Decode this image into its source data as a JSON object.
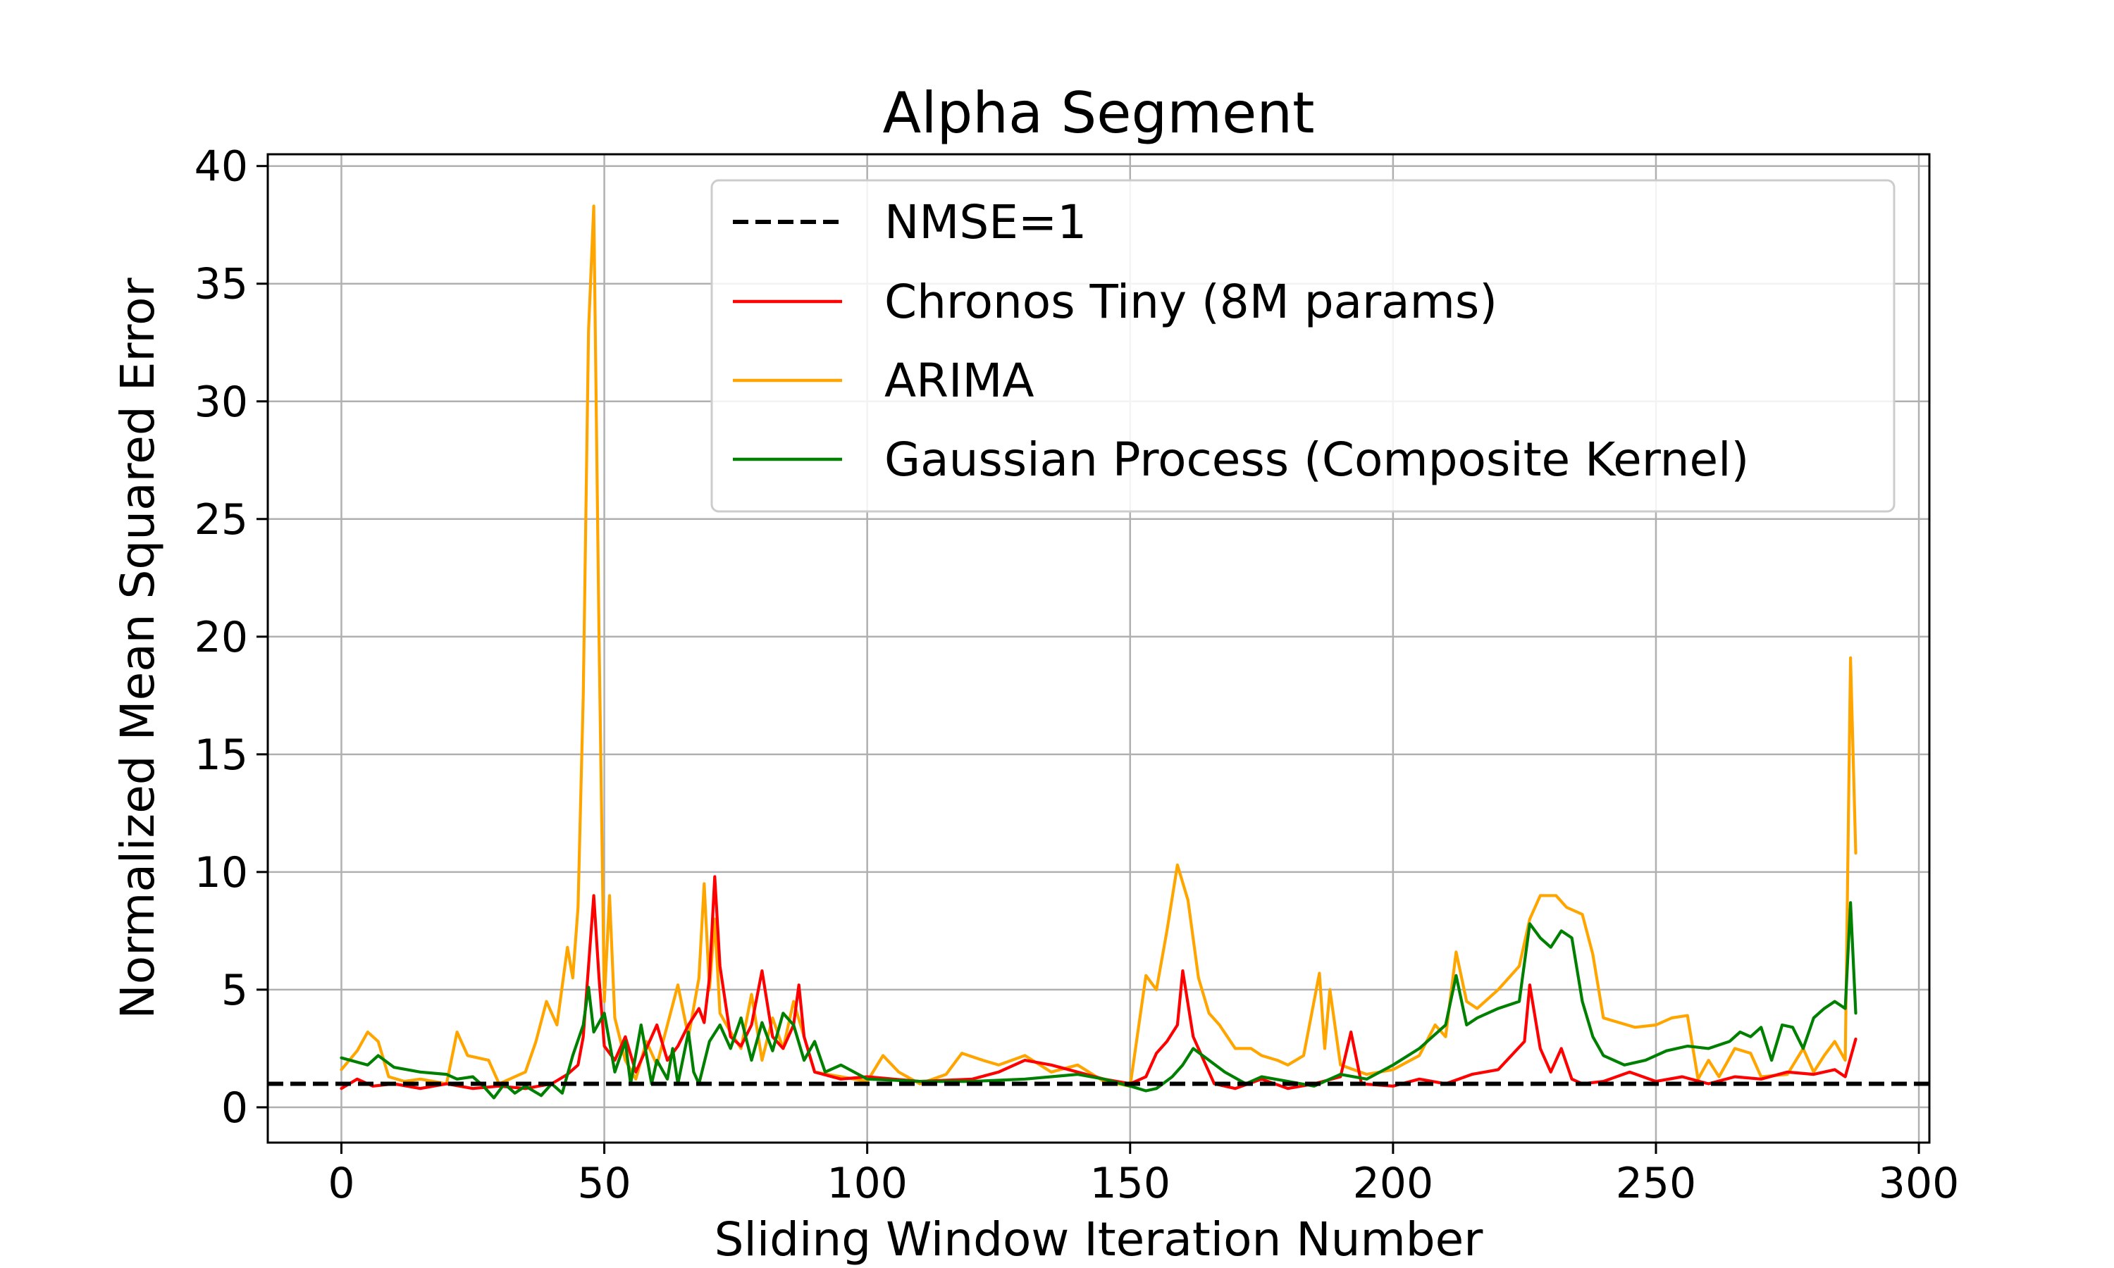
{
  "chart_data": {
    "type": "line",
    "title": "Alpha Segment",
    "xlabel": "Sliding Window Iteration Number",
    "ylabel": "Normalized Mean Squared Error",
    "xlim": [
      -14,
      302
    ],
    "ylim": [
      -1.5,
      40.5
    ],
    "xticks": [
      0,
      50,
      100,
      150,
      200,
      250,
      300
    ],
    "yticks": [
      0,
      5,
      10,
      15,
      20,
      25,
      30,
      35,
      40
    ],
    "grid": true,
    "legend_position": "top-right",
    "reference_line": {
      "name": "NMSE=1",
      "y": 1,
      "color": "#000000",
      "style": "dashed"
    },
    "series": [
      {
        "name": "Chronos Tiny (8M params)",
        "color": "#ff0000",
        "points": [
          [
            0,
            0.8
          ],
          [
            3,
            1.2
          ],
          [
            6,
            0.9
          ],
          [
            10,
            1.0
          ],
          [
            15,
            0.8
          ],
          [
            20,
            1.0
          ],
          [
            25,
            0.8
          ],
          [
            30,
            0.9
          ],
          [
            35,
            0.8
          ],
          [
            40,
            1.0
          ],
          [
            43,
            1.4
          ],
          [
            45,
            1.8
          ],
          [
            46,
            3.0
          ],
          [
            47,
            6.0
          ],
          [
            48,
            9.0
          ],
          [
            49,
            5.5
          ],
          [
            50,
            2.6
          ],
          [
            52,
            2.0
          ],
          [
            54,
            3.0
          ],
          [
            56,
            1.5
          ],
          [
            58,
            2.5
          ],
          [
            60,
            3.5
          ],
          [
            62,
            2.0
          ],
          [
            64,
            2.6
          ],
          [
            66,
            3.5
          ],
          [
            68,
            4.2
          ],
          [
            69,
            3.6
          ],
          [
            70,
            5.5
          ],
          [
            71,
            9.8
          ],
          [
            72,
            6.0
          ],
          [
            74,
            3.0
          ],
          [
            76,
            2.6
          ],
          [
            78,
            3.5
          ],
          [
            80,
            5.8
          ],
          [
            82,
            3.0
          ],
          [
            84,
            2.5
          ],
          [
            86,
            3.5
          ],
          [
            87,
            5.2
          ],
          [
            88,
            3.0
          ],
          [
            90,
            1.5
          ],
          [
            95,
            1.2
          ],
          [
            100,
            1.3
          ],
          [
            110,
            1.1
          ],
          [
            120,
            1.2
          ],
          [
            125,
            1.5
          ],
          [
            130,
            2.0
          ],
          [
            135,
            1.8
          ],
          [
            140,
            1.5
          ],
          [
            145,
            1.2
          ],
          [
            150,
            1.0
          ],
          [
            153,
            1.3
          ],
          [
            155,
            2.3
          ],
          [
            157,
            2.8
          ],
          [
            159,
            3.5
          ],
          [
            160,
            5.8
          ],
          [
            162,
            3.0
          ],
          [
            164,
            2.0
          ],
          [
            166,
            1.0
          ],
          [
            170,
            0.8
          ],
          [
            175,
            1.2
          ],
          [
            180,
            0.8
          ],
          [
            185,
            1.0
          ],
          [
            190,
            1.3
          ],
          [
            192,
            3.2
          ],
          [
            194,
            1.0
          ],
          [
            200,
            0.9
          ],
          [
            205,
            1.2
          ],
          [
            210,
            1.0
          ],
          [
            215,
            1.4
          ],
          [
            220,
            1.6
          ],
          [
            225,
            2.8
          ],
          [
            226,
            5.2
          ],
          [
            228,
            2.5
          ],
          [
            230,
            1.5
          ],
          [
            232,
            2.5
          ],
          [
            234,
            1.2
          ],
          [
            236,
            1.0
          ],
          [
            240,
            1.1
          ],
          [
            245,
            1.5
          ],
          [
            250,
            1.1
          ],
          [
            255,
            1.3
          ],
          [
            260,
            1.0
          ],
          [
            265,
            1.3
          ],
          [
            270,
            1.2
          ],
          [
            275,
            1.5
          ],
          [
            280,
            1.4
          ],
          [
            284,
            1.6
          ],
          [
            286,
            1.3
          ],
          [
            288,
            2.9
          ]
        ]
      },
      {
        "name": "ARIMA",
        "color": "#ffa500",
        "points": [
          [
            0,
            1.6
          ],
          [
            3,
            2.4
          ],
          [
            5,
            3.2
          ],
          [
            7,
            2.8
          ],
          [
            9,
            1.3
          ],
          [
            12,
            1.1
          ],
          [
            15,
            1.2
          ],
          [
            20,
            1.0
          ],
          [
            22,
            3.2
          ],
          [
            24,
            2.2
          ],
          [
            28,
            2.0
          ],
          [
            30,
            1.0
          ],
          [
            35,
            1.5
          ],
          [
            37,
            2.8
          ],
          [
            39,
            4.5
          ],
          [
            41,
            3.5
          ],
          [
            43,
            6.8
          ],
          [
            44,
            5.5
          ],
          [
            45,
            8.5
          ],
          [
            46,
            17.5
          ],
          [
            47,
            33.0
          ],
          [
            48,
            38.3
          ],
          [
            49,
            20.0
          ],
          [
            50,
            4.5
          ],
          [
            51,
            9.0
          ],
          [
            52,
            3.8
          ],
          [
            54,
            2.0
          ],
          [
            56,
            1.2
          ],
          [
            58,
            2.8
          ],
          [
            60,
            1.8
          ],
          [
            62,
            3.5
          ],
          [
            64,
            5.2
          ],
          [
            66,
            3.0
          ],
          [
            68,
            5.5
          ],
          [
            69,
            9.5
          ],
          [
            70,
            5.0
          ],
          [
            71,
            8.0
          ],
          [
            72,
            4.0
          ],
          [
            74,
            3.2
          ],
          [
            76,
            2.5
          ],
          [
            78,
            4.8
          ],
          [
            80,
            2.0
          ],
          [
            82,
            3.8
          ],
          [
            84,
            2.5
          ],
          [
            86,
            4.5
          ],
          [
            88,
            3.0
          ],
          [
            90,
            1.5
          ],
          [
            95,
            1.3
          ],
          [
            100,
            1.1
          ],
          [
            103,
            2.2
          ],
          [
            106,
            1.5
          ],
          [
            110,
            1.0
          ],
          [
            115,
            1.4
          ],
          [
            118,
            2.3
          ],
          [
            122,
            2.0
          ],
          [
            125,
            1.8
          ],
          [
            130,
            2.2
          ],
          [
            135,
            1.5
          ],
          [
            140,
            1.8
          ],
          [
            145,
            1.1
          ],
          [
            150,
            0.9
          ],
          [
            153,
            5.6
          ],
          [
            155,
            5.0
          ],
          [
            157,
            7.5
          ],
          [
            159,
            10.3
          ],
          [
            161,
            8.8
          ],
          [
            163,
            5.5
          ],
          [
            165,
            4.0
          ],
          [
            167,
            3.5
          ],
          [
            170,
            2.5
          ],
          [
            173,
            2.5
          ],
          [
            175,
            2.2
          ],
          [
            178,
            2.0
          ],
          [
            180,
            1.8
          ],
          [
            183,
            2.2
          ],
          [
            186,
            5.7
          ],
          [
            187,
            2.5
          ],
          [
            188,
            5.0
          ],
          [
            190,
            1.8
          ],
          [
            195,
            1.4
          ],
          [
            200,
            1.6
          ],
          [
            205,
            2.2
          ],
          [
            208,
            3.5
          ],
          [
            210,
            3.0
          ],
          [
            212,
            6.6
          ],
          [
            214,
            4.5
          ],
          [
            216,
            4.2
          ],
          [
            220,
            5.0
          ],
          [
            224,
            6.0
          ],
          [
            226,
            8.0
          ],
          [
            228,
            9.0
          ],
          [
            231,
            9.0
          ],
          [
            233,
            8.5
          ],
          [
            236,
            8.2
          ],
          [
            238,
            6.5
          ],
          [
            240,
            3.8
          ],
          [
            243,
            3.6
          ],
          [
            246,
            3.4
          ],
          [
            250,
            3.5
          ],
          [
            253,
            3.8
          ],
          [
            256,
            3.9
          ],
          [
            258,
            1.2
          ],
          [
            260,
            2.0
          ],
          [
            262,
            1.3
          ],
          [
            265,
            2.5
          ],
          [
            268,
            2.3
          ],
          [
            270,
            1.3
          ],
          [
            275,
            1.4
          ],
          [
            278,
            2.5
          ],
          [
            280,
            1.5
          ],
          [
            282,
            2.2
          ],
          [
            284,
            2.8
          ],
          [
            286,
            2.0
          ],
          [
            287,
            19.1
          ],
          [
            288,
            10.8
          ]
        ]
      },
      {
        "name": "Gaussian Process (Composite Kernel)",
        "color": "#008000",
        "points": [
          [
            0,
            2.1
          ],
          [
            5,
            1.8
          ],
          [
            7,
            2.2
          ],
          [
            10,
            1.7
          ],
          [
            15,
            1.5
          ],
          [
            20,
            1.4
          ],
          [
            22,
            1.2
          ],
          [
            25,
            1.3
          ],
          [
            27,
            0.9
          ],
          [
            29,
            0.4
          ],
          [
            31,
            1.0
          ],
          [
            33,
            0.6
          ],
          [
            35,
            0.9
          ],
          [
            38,
            0.5
          ],
          [
            40,
            1.0
          ],
          [
            42,
            0.6
          ],
          [
            44,
            2.2
          ],
          [
            46,
            3.5
          ],
          [
            47,
            5.1
          ],
          [
            48,
            3.2
          ],
          [
            50,
            4.0
          ],
          [
            52,
            1.5
          ],
          [
            54,
            2.8
          ],
          [
            55,
            1.0
          ],
          [
            57,
            3.5
          ],
          [
            59,
            1.0
          ],
          [
            60,
            2.0
          ],
          [
            62,
            1.2
          ],
          [
            63,
            2.5
          ],
          [
            64,
            1.0
          ],
          [
            66,
            3.2
          ],
          [
            67,
            1.5
          ],
          [
            68,
            1.0
          ],
          [
            70,
            2.8
          ],
          [
            72,
            3.5
          ],
          [
            74,
            2.5
          ],
          [
            76,
            3.8
          ],
          [
            78,
            2.0
          ],
          [
            80,
            3.6
          ],
          [
            82,
            2.4
          ],
          [
            84,
            4.0
          ],
          [
            86,
            3.5
          ],
          [
            88,
            2.0
          ],
          [
            90,
            2.8
          ],
          [
            92,
            1.5
          ],
          [
            95,
            1.8
          ],
          [
            100,
            1.2
          ],
          [
            110,
            1.1
          ],
          [
            120,
            1.1
          ],
          [
            130,
            1.2
          ],
          [
            140,
            1.4
          ],
          [
            145,
            1.2
          ],
          [
            150,
            0.9
          ],
          [
            153,
            0.7
          ],
          [
            155,
            0.8
          ],
          [
            158,
            1.3
          ],
          [
            160,
            1.8
          ],
          [
            162,
            2.5
          ],
          [
            165,
            2.0
          ],
          [
            168,
            1.5
          ],
          [
            172,
            1.0
          ],
          [
            175,
            1.3
          ],
          [
            180,
            1.1
          ],
          [
            185,
            0.9
          ],
          [
            190,
            1.4
          ],
          [
            195,
            1.2
          ],
          [
            200,
            1.8
          ],
          [
            205,
            2.5
          ],
          [
            210,
            3.5
          ],
          [
            212,
            5.6
          ],
          [
            214,
            3.5
          ],
          [
            216,
            3.8
          ],
          [
            220,
            4.2
          ],
          [
            224,
            4.5
          ],
          [
            226,
            7.8
          ],
          [
            228,
            7.2
          ],
          [
            230,
            6.8
          ],
          [
            232,
            7.5
          ],
          [
            234,
            7.2
          ],
          [
            236,
            4.5
          ],
          [
            238,
            3.0
          ],
          [
            240,
            2.2
          ],
          [
            244,
            1.8
          ],
          [
            248,
            2.0
          ],
          [
            252,
            2.4
          ],
          [
            256,
            2.6
          ],
          [
            260,
            2.5
          ],
          [
            264,
            2.8
          ],
          [
            266,
            3.2
          ],
          [
            268,
            3.0
          ],
          [
            270,
            3.4
          ],
          [
            272,
            2.0
          ],
          [
            274,
            3.5
          ],
          [
            276,
            3.4
          ],
          [
            278,
            2.5
          ],
          [
            280,
            3.8
          ],
          [
            282,
            4.2
          ],
          [
            284,
            4.5
          ],
          [
            286,
            4.2
          ],
          [
            287,
            8.7
          ],
          [
            288,
            4.0
          ]
        ]
      }
    ]
  }
}
